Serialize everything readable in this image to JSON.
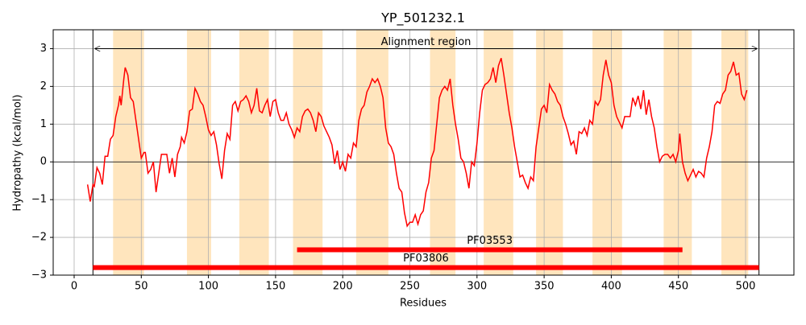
{
  "chart_data": {
    "type": "line",
    "title": "YP_501232.1",
    "x_label": "Residues",
    "y_label": "Hydropathy (kcal/mol)",
    "color": "red",
    "xlim": [
      -15.6,
      536
    ],
    "ylim": [
      -3,
      3.5
    ],
    "xticks": [
      0,
      50,
      100,
      150,
      200,
      250,
      300,
      350,
      400,
      450,
      500
    ],
    "yticks": [
      -3,
      -2,
      -1,
      0,
      1,
      2,
      3
    ],
    "grid": true,
    "hline": 0,
    "highlight_color": "#ffe5bd",
    "highlight_regions": [
      [
        29,
        52
      ],
      [
        84,
        102
      ],
      [
        123,
        145
      ],
      [
        163,
        185
      ],
      [
        210,
        234
      ],
      [
        265,
        284
      ],
      [
        305,
        327
      ],
      [
        344,
        364
      ],
      [
        386,
        408
      ],
      [
        439,
        460
      ],
      [
        482,
        502
      ]
    ],
    "alignment": {
      "label": "Alignment region",
      "start": 14,
      "end": 510,
      "y": 3
    },
    "domains": [
      {
        "label": "PF03553",
        "start": 166,
        "end": 453,
        "y": -2.33
      },
      {
        "label": "PF03806",
        "start": 14,
        "end": 510,
        "y": -2.8
      }
    ],
    "x": [
      10,
      12,
      14,
      15,
      17,
      19,
      21,
      23,
      25,
      27,
      29,
      31,
      33,
      34,
      35,
      37,
      38,
      40,
      42,
      44,
      46,
      48,
      50,
      52,
      53,
      55,
      57,
      59,
      61,
      63,
      65,
      67,
      69,
      71,
      73,
      75,
      77,
      79,
      80,
      82,
      84,
      86,
      88,
      90,
      92,
      94,
      96,
      98,
      100,
      102,
      104,
      106,
      108,
      110,
      112,
      114,
      116,
      118,
      120,
      122,
      124,
      126,
      128,
      130,
      132,
      134,
      136,
      138,
      140,
      142,
      144,
      146,
      148,
      150,
      152,
      154,
      156,
      158,
      160,
      162,
      164,
      166,
      168,
      170,
      172,
      174,
      176,
      178,
      180,
      182,
      184,
      186,
      188,
      190,
      192,
      194,
      196,
      198,
      200,
      202,
      204,
      206,
      208,
      210,
      212,
      214,
      216,
      218,
      220,
      222,
      224,
      226,
      228,
      230,
      232,
      234,
      236,
      238,
      240,
      242,
      244,
      246,
      248,
      250,
      252,
      254,
      256,
      258,
      260,
      262,
      264,
      266,
      268,
      270,
      272,
      274,
      276,
      278,
      280,
      282,
      284,
      286,
      288,
      290,
      292,
      294,
      296,
      298,
      300,
      302,
      304,
      306,
      308,
      310,
      312,
      314,
      316,
      318,
      320,
      322,
      324,
      326,
      328,
      330,
      332,
      334,
      336,
      338,
      340,
      342,
      344,
      346,
      348,
      350,
      352,
      354,
      356,
      358,
      360,
      362,
      364,
      366,
      368,
      370,
      372,
      374,
      376,
      378,
      380,
      382,
      384,
      386,
      388,
      390,
      392,
      394,
      396,
      398,
      400,
      402,
      404,
      406,
      408,
      410,
      412,
      414,
      416,
      418,
      420,
      422,
      424,
      426,
      428,
      430,
      432,
      434,
      436,
      438,
      440,
      442,
      444,
      446,
      448,
      450,
      451,
      453,
      455,
      457,
      459,
      461,
      463,
      465,
      467,
      469,
      471,
      473,
      475,
      477,
      479,
      481,
      483,
      485,
      487,
      489,
      491,
      493,
      495,
      497,
      499,
      501
    ],
    "values": [
      -0.6,
      -1.05,
      -0.6,
      -0.65,
      -0.15,
      -0.3,
      -0.6,
      0.15,
      0.15,
      0.6,
      0.7,
      1.2,
      1.5,
      1.75,
      1.5,
      2.2,
      2.5,
      2.3,
      1.7,
      1.6,
      1.1,
      0.6,
      0.1,
      0.25,
      0.25,
      -0.3,
      -0.2,
      0.0,
      -0.8,
      -0.3,
      0.2,
      0.2,
      0.2,
      -0.3,
      0.1,
      -0.4,
      0.2,
      0.4,
      0.65,
      0.5,
      0.8,
      1.35,
      1.4,
      1.95,
      1.8,
      1.6,
      1.5,
      1.2,
      0.85,
      0.7,
      0.8,
      0.45,
      -0.05,
      -0.45,
      0.3,
      0.75,
      0.6,
      1.5,
      1.6,
      1.35,
      1.6,
      1.65,
      1.75,
      1.6,
      1.3,
      1.5,
      1.95,
      1.35,
      1.3,
      1.5,
      1.65,
      1.2,
      1.6,
      1.65,
      1.3,
      1.1,
      1.1,
      1.3,
      1.0,
      0.85,
      0.65,
      0.9,
      0.8,
      1.2,
      1.35,
      1.4,
      1.3,
      1.1,
      0.8,
      1.3,
      1.2,
      0.95,
      0.8,
      0.65,
      0.45,
      -0.05,
      0.3,
      -0.2,
      0.0,
      -0.25,
      0.2,
      0.1,
      0.5,
      0.4,
      1.1,
      1.4,
      1.5,
      1.85,
      2.0,
      2.2,
      2.1,
      2.2,
      2.0,
      1.7,
      0.9,
      0.5,
      0.4,
      0.2,
      -0.3,
      -0.7,
      -0.8,
      -1.35,
      -1.7,
      -1.6,
      -1.6,
      -1.4,
      -1.65,
      -1.4,
      -1.3,
      -0.8,
      -0.55,
      0.1,
      0.3,
      1.0,
      1.7,
      1.9,
      2.0,
      1.9,
      2.2,
      1.5,
      1.0,
      0.6,
      0.1,
      0.0,
      -0.3,
      -0.7,
      0.0,
      -0.1,
      0.5,
      1.3,
      1.9,
      2.05,
      2.1,
      2.2,
      2.5,
      2.1,
      2.55,
      2.75,
      2.3,
      1.8,
      1.3,
      0.9,
      0.4,
      0.0,
      -0.4,
      -0.35,
      -0.55,
      -0.7,
      -0.4,
      -0.5,
      0.4,
      0.9,
      1.4,
      1.5,
      1.3,
      2.05,
      1.9,
      1.8,
      1.6,
      1.5,
      1.2,
      1.0,
      0.75,
      0.45,
      0.55,
      0.2,
      0.8,
      0.75,
      0.9,
      0.7,
      1.1,
      1.0,
      1.6,
      1.5,
      1.65,
      2.3,
      2.7,
      2.3,
      2.1,
      1.5,
      1.2,
      1.05,
      0.9,
      1.2,
      1.2,
      1.2,
      1.7,
      1.5,
      1.75,
      1.4,
      1.9,
      1.25,
      1.65,
      1.2,
      0.9,
      0.4,
      0.0,
      0.15,
      0.2,
      0.2,
      0.1,
      0.2,
      0.0,
      0.3,
      0.75,
      0.0,
      -0.3,
      -0.5,
      -0.35,
      -0.2,
      -0.4,
      -0.25,
      -0.3,
      -0.4,
      0.1,
      0.4,
      0.8,
      1.5,
      1.6,
      1.55,
      1.8,
      1.9,
      2.3,
      2.4,
      2.65,
      2.3,
      2.35,
      1.8,
      1.65,
      1.9
    ]
  }
}
